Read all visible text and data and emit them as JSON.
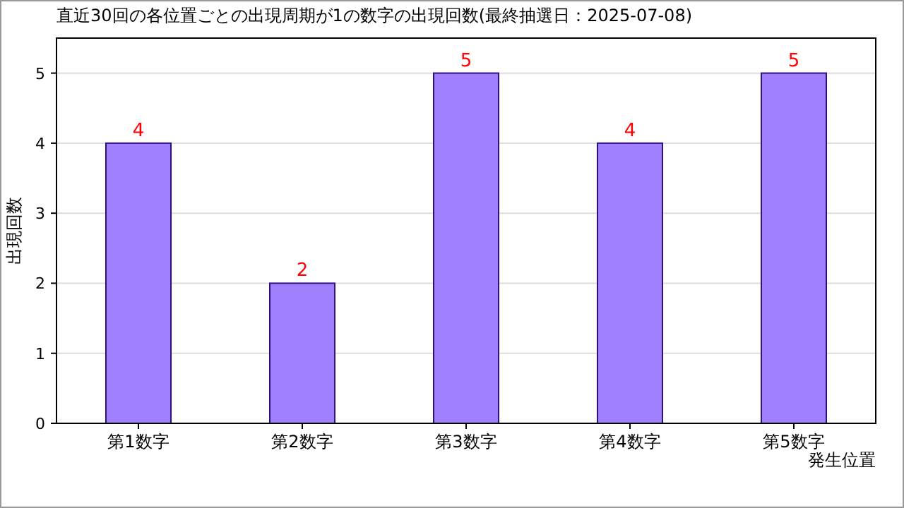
{
  "chart_data": {
    "type": "bar",
    "title": "直近30回の各位置ごとの出現周期が1の数字の出現回数(最終抽選日：2025-07-08)",
    "xlabel": "発生位置",
    "ylabel": "出現回数",
    "categories": [
      "第1数字",
      "第2数字",
      "第3数字",
      "第4数字",
      "第5数字"
    ],
    "values": [
      4,
      2,
      5,
      4,
      5
    ],
    "color": "#a080ff",
    "ylim": [
      0,
      5.5
    ],
    "yticks": [
      0,
      1,
      2,
      3,
      4,
      5
    ],
    "grid": "y",
    "data_labels": true
  }
}
